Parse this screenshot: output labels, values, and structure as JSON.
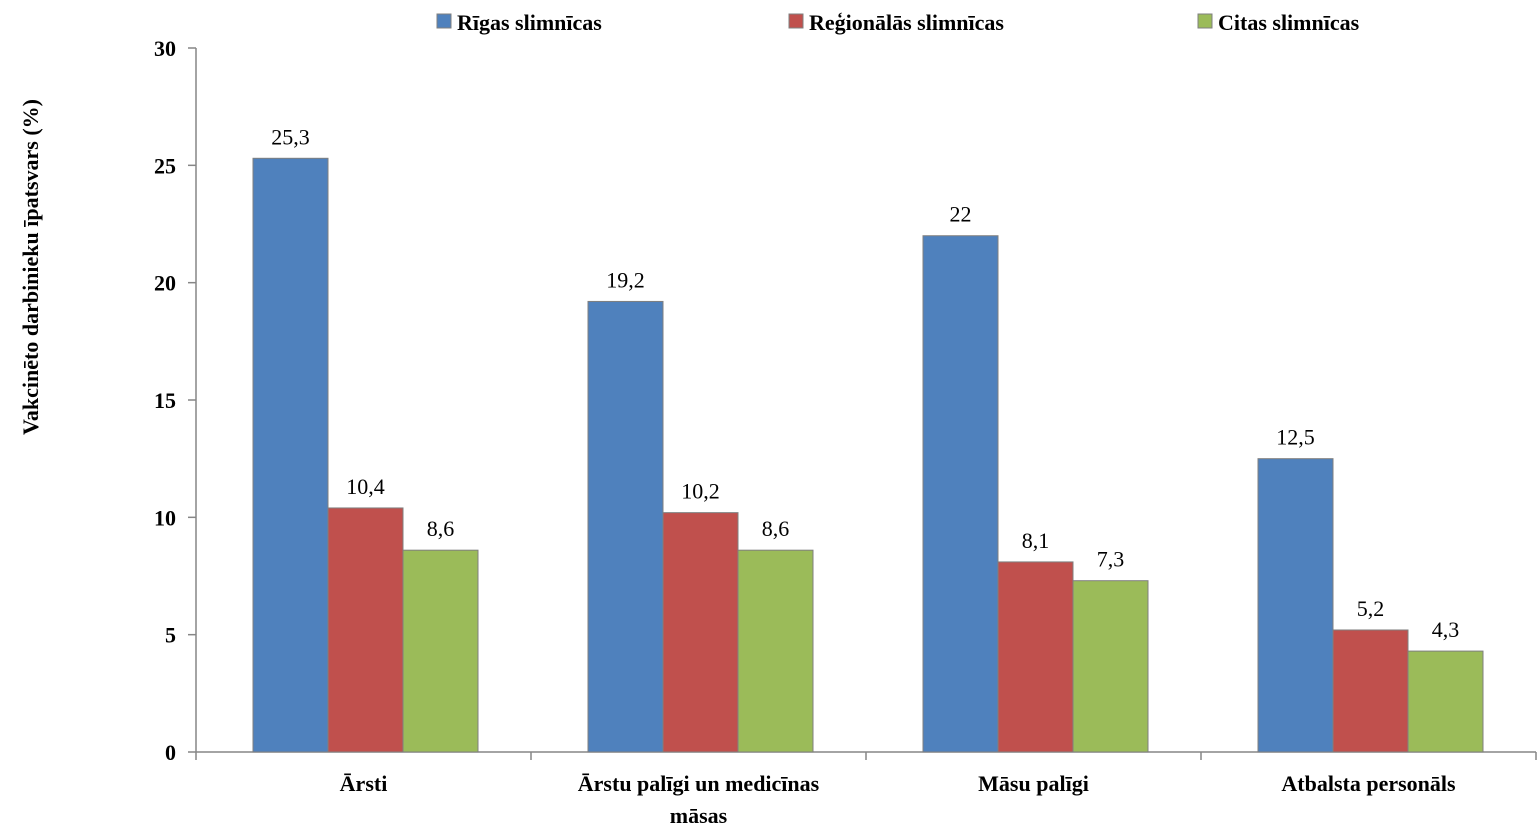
{
  "chart_data": {
    "type": "bar",
    "categories": [
      "Ārsti",
      "Ārstu palīgi un medicīnas māsas",
      "Māsu palīgi",
      "Atbalsta personāls"
    ],
    "category_lines": [
      [
        "Ārsti"
      ],
      [
        "Ārstu palīgi un medicīnas",
        "māsas"
      ],
      [
        "Māsu palīgi"
      ],
      [
        "Atbalsta personāls"
      ]
    ],
    "series": [
      {
        "name": "Rīgas slimnīcas",
        "color": "#4F81BD",
        "values": [
          25.3,
          19.2,
          22,
          12.5
        ],
        "labels": [
          "25,3",
          "19,2",
          "22",
          "12,5"
        ]
      },
      {
        "name": "Reģionālās slimnīcas",
        "color": "#C0504D",
        "values": [
          10.4,
          10.2,
          8.1,
          5.2
        ],
        "labels": [
          "10,4",
          "10,2",
          "8,1",
          "5,2"
        ]
      },
      {
        "name": "Citas slimnīcas",
        "color": "#9BBB59",
        "values": [
          8.6,
          8.6,
          7.3,
          4.3
        ],
        "labels": [
          "8,6",
          "8,6",
          "7,3",
          "4,3"
        ]
      }
    ],
    "ylabel": "Vakcinēto darbinieku īpatsvars (%)",
    "xlabel": "",
    "ylim": [
      0,
      30
    ],
    "yticks": [
      0,
      5,
      10,
      15,
      20,
      25,
      30
    ],
    "grid": false,
    "legend_position": "top"
  }
}
